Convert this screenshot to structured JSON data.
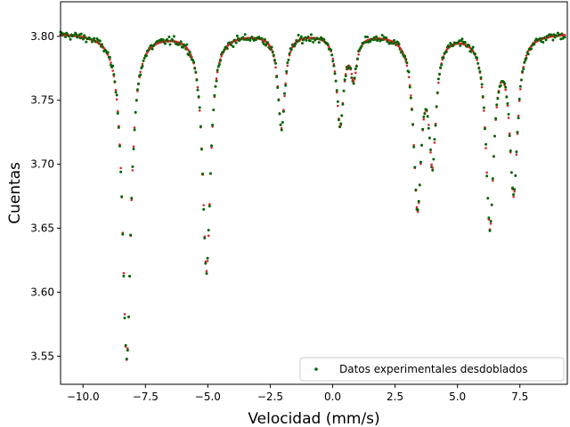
{
  "chart_data": {
    "type": "scatter",
    "xlabel": "Velocidad (mm/s)",
    "ylabel": "Cuentas",
    "xlim": [
      -10.9,
      9.4
    ],
    "ylim": [
      3.528,
      3.827
    ],
    "x_ticks": [
      -10.0,
      -7.5,
      -5.0,
      -2.5,
      0.0,
      2.5,
      5.0,
      7.5
    ],
    "x_tick_labels": [
      "−10.0",
      "−7.5",
      "−5.0",
      "−2.5",
      "0.0",
      "2.5",
      "5.0",
      "7.5"
    ],
    "y_ticks": [
      3.55,
      3.6,
      3.65,
      3.7,
      3.75,
      3.8
    ],
    "y_tick_labels": [
      "3.55",
      "3.60",
      "3.65",
      "3.70",
      "3.75",
      "3.80"
    ],
    "grid": false,
    "legend_position": "lower-right",
    "series": [
      {
        "name": "Datos experimentales desdoblados",
        "color": "#006400",
        "fit_color": "#d62728",
        "baseline": 3.803,
        "x_range": [
          -10.9,
          9.3
        ],
        "n_points": 512,
        "absorption_lines": [
          {
            "center": -8.25,
            "depth": 0.255,
            "halfwidth": 0.2
          },
          {
            "center": -5.05,
            "depth": 0.185,
            "halfwidth": 0.19
          },
          {
            "center": -2.05,
            "depth": 0.073,
            "halfwidth": 0.17
          },
          {
            "center": 0.3,
            "depth": 0.07,
            "halfwidth": 0.17
          },
          {
            "center": 0.85,
            "depth": 0.03,
            "halfwidth": 0.15
          },
          {
            "center": 3.4,
            "depth": 0.132,
            "halfwidth": 0.19
          },
          {
            "center": 4.0,
            "depth": 0.092,
            "halfwidth": 0.17
          },
          {
            "center": 6.3,
            "depth": 0.148,
            "halfwidth": 0.19
          },
          {
            "center": 7.25,
            "depth": 0.122,
            "halfwidth": 0.19
          }
        ],
        "noise": 0.004
      }
    ]
  }
}
